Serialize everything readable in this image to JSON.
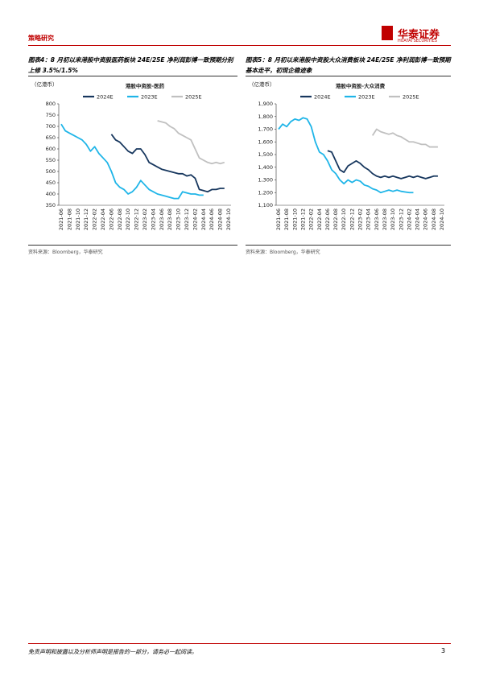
{
  "header": {
    "section": "策略研究",
    "logo": "华泰证券",
    "logo_en": "HUATAI SECURITIES"
  },
  "chart_data": [
    {
      "type": "line",
      "caption": "图表4：8 月初以来港股中资股医药板块 24E/25E 净利润彭博一致预期分别上修 3.5%/1.5%",
      "unit_label": "（亿港币）",
      "title": "港股中资股-医药",
      "source": "资料来源：Bloomberg，华泰研究",
      "categories": [
        "2021-06",
        null,
        "2021-08",
        null,
        "2021-10",
        null,
        "2021-12",
        null,
        "2022-02",
        null,
        "2022-04",
        null,
        "2022-06",
        null,
        "2022-08",
        null,
        "2022-10",
        null,
        "2022-12",
        null,
        "2023-02",
        null,
        "2023-04",
        null,
        "2023-06",
        null,
        "2023-08",
        null,
        "2023-10",
        null,
        "2023-12",
        null,
        "2024-02",
        null,
        "2024-04",
        null,
        "2024-06",
        null,
        "2024-08",
        null,
        "2024-10"
      ],
      "ylim": [
        350,
        800
      ],
      "yticks": [
        350,
        400,
        450,
        500,
        550,
        600,
        650,
        700,
        750,
        800
      ],
      "series": [
        {
          "name": "2024E",
          "color": "#17375e",
          "values": [
            null,
            null,
            null,
            null,
            null,
            null,
            null,
            null,
            null,
            null,
            null,
            null,
            665,
            640,
            630,
            610,
            590,
            580,
            600,
            600,
            575,
            540,
            530,
            520,
            510,
            505,
            500,
            495,
            490,
            490,
            480,
            485,
            470,
            420,
            415,
            410,
            420,
            420,
            425,
            425,
            null
          ]
        },
        {
          "name": "2023E",
          "color": "#1fb5e8",
          "values": [
            710,
            680,
            670,
            660,
            650,
            640,
            620,
            590,
            610,
            580,
            560,
            540,
            500,
            450,
            430,
            420,
            400,
            410,
            430,
            460,
            440,
            420,
            410,
            400,
            395,
            390,
            385,
            380,
            380,
            410,
            405,
            400,
            400,
            395,
            395,
            null,
            null,
            null,
            null,
            null,
            null
          ]
        },
        {
          "name": "2025E",
          "color": "#c0c0c0",
          "values": [
            null,
            null,
            null,
            null,
            null,
            null,
            null,
            null,
            null,
            null,
            null,
            null,
            null,
            null,
            null,
            null,
            null,
            null,
            null,
            null,
            null,
            null,
            null,
            725,
            720,
            715,
            700,
            690,
            670,
            660,
            650,
            640,
            600,
            560,
            550,
            540,
            535,
            540,
            535,
            540,
            null
          ]
        }
      ]
    },
    {
      "type": "line",
      "caption": "图表5：8 月初以来港股中资股大众消费板块 24E/25E 净利润彭博一致预期基本走平，初现企稳迹象",
      "unit_label": "（亿港币）",
      "title": "港股中资股-大众消费",
      "source": "资料来源：Bloomberg，华泰研究",
      "categories": [
        "2021-06",
        null,
        "2021-08",
        null,
        "2021-10",
        null,
        "2021-12",
        null,
        "2022-02",
        null,
        "2022-04",
        null,
        "2022-06",
        null,
        "2022-08",
        null,
        "2022-10",
        null,
        "2022-12",
        null,
        "2023-02",
        null,
        "2023-04",
        null,
        "2023-06",
        null,
        "2023-08",
        null,
        "2023-10",
        null,
        "2023-12",
        null,
        "2024-02",
        null,
        "2024-04",
        null,
        "2024-06",
        null,
        "2024-08",
        null,
        "2024-10"
      ],
      "ylim": [
        1100,
        1900
      ],
      "yticks": [
        {
          "value": 1100,
          "label": "1,100"
        },
        {
          "value": 1200,
          "label": "1,200"
        },
        {
          "value": 1300,
          "label": "1,300"
        },
        {
          "value": 1400,
          "label": "1,400"
        },
        {
          "value": 1500,
          "label": "1,500"
        },
        {
          "value": 1600,
          "label": "1,600"
        },
        {
          "value": 1700,
          "label": "1,700"
        },
        {
          "value": 1800,
          "label": "1,800"
        },
        {
          "value": 1900,
          "label": "1,900"
        }
      ],
      "series": [
        {
          "name": "2024E",
          "color": "#17375e",
          "values": [
            null,
            null,
            null,
            null,
            null,
            null,
            null,
            null,
            null,
            null,
            null,
            null,
            1530,
            1520,
            1450,
            1380,
            1360,
            1410,
            1430,
            1450,
            1430,
            1400,
            1380,
            1350,
            1330,
            1320,
            1330,
            1320,
            1330,
            1320,
            1310,
            1320,
            1330,
            1320,
            1330,
            1320,
            1310,
            1320,
            1330,
            1330,
            null
          ]
        },
        {
          "name": "2023E",
          "color": "#1fb5e8",
          "values": [
            1700,
            1740,
            1720,
            1760,
            1780,
            1770,
            1790,
            1780,
            1720,
            1600,
            1520,
            1500,
            1450,
            1380,
            1350,
            1300,
            1270,
            1300,
            1280,
            1300,
            1290,
            1260,
            1250,
            1230,
            1220,
            1200,
            1210,
            1220,
            1210,
            1220,
            1210,
            1205,
            1200,
            1200,
            null,
            null,
            null,
            null,
            null,
            null,
            null
          ]
        },
        {
          "name": "2025E",
          "color": "#c0c0c0",
          "values": [
            null,
            null,
            null,
            null,
            null,
            null,
            null,
            null,
            null,
            null,
            null,
            null,
            null,
            null,
            null,
            null,
            null,
            null,
            null,
            null,
            null,
            null,
            null,
            1650,
            1700,
            1680,
            1670,
            1660,
            1670,
            1650,
            1640,
            1620,
            1600,
            1600,
            1590,
            1580,
            1580,
            1560,
            1560,
            1560,
            null
          ]
        }
      ]
    }
  ],
  "footer": {
    "disclaimer": "免责声明和披露以及分析师声明是报告的一部分，请务必一起阅读。",
    "page": "3"
  }
}
